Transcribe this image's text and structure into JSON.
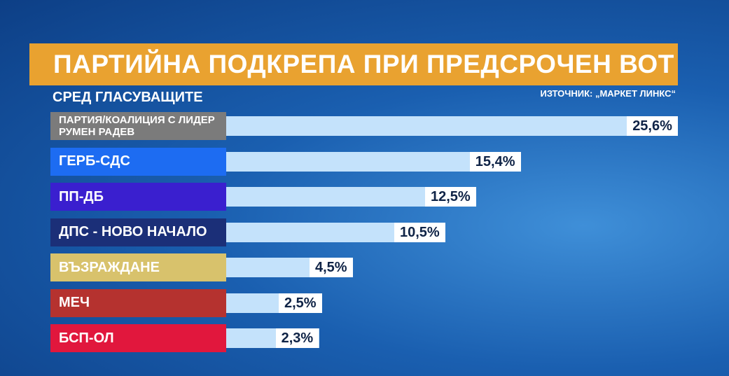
{
  "chart_data": {
    "type": "bar",
    "orientation": "horizontal",
    "title": "ПАРТИЙНА ПОДКРЕПА ПРИ ПРЕДСРОЧЕН ВОТ",
    "subtitle": "СРЕД ГЛАСУВАЩИТЕ",
    "source": "ИЗТОЧНИК: „МАРКЕТ ЛИНКС“",
    "categories": [
      "ПАРТИЯ/КОАЛИЦИЯ С ЛИДЕР РУМЕН РАДЕВ",
      "ГЕРБ-СДС",
      "ПП-ДБ",
      "ДПС - НОВО НАЧАЛО",
      "ВЪЗРАЖДАНЕ",
      "МЕЧ",
      "БСП-ОЛ"
    ],
    "values": [
      25.6,
      15.4,
      12.5,
      10.5,
      4.5,
      2.5,
      2.3
    ],
    "value_labels": [
      "25,6%",
      "15,4%",
      "12,5%",
      "10,5%",
      "4,5%",
      "2,5%",
      "2,3%"
    ],
    "category_colors": [
      "#7b7b7b",
      "#1d6cf2",
      "#3a1fcf",
      "#1b2f78",
      "#d8c26c",
      "#b5322f",
      "#e1173d"
    ],
    "color": "#c4e2fb"
  }
}
